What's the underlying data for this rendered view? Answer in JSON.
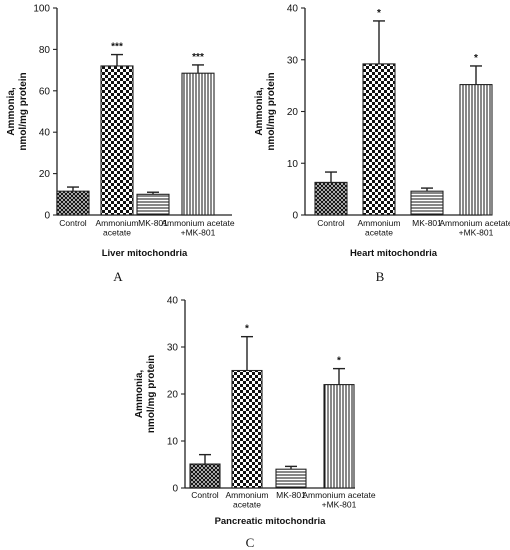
{
  "chart_data": [
    {
      "type": "bar",
      "panel": "A",
      "title": "Liver mitochondria",
      "ylabel": [
        "Ammonia,",
        "nmol/mg protein"
      ],
      "ylim": [
        0,
        100
      ],
      "yticks": [
        0,
        20,
        40,
        60,
        80,
        100
      ],
      "categories": [
        [
          "Control"
        ],
        [
          "Ammonium",
          "acetate"
        ],
        [
          "MK-801"
        ],
        [
          "Ammonium acetate",
          "+MK-801"
        ]
      ],
      "values": [
        11.5,
        72,
        10,
        68.5
      ],
      "errors": [
        2,
        5.5,
        1,
        4
      ],
      "significance": [
        "",
        "***",
        "",
        "***"
      ],
      "patterns": [
        "crosshatch",
        "checker",
        "horizontal",
        "vertical"
      ]
    },
    {
      "type": "bar",
      "panel": "B",
      "title": "Heart mitochondria",
      "ylabel": [
        "Ammonia,",
        "nmol/mg protein"
      ],
      "ylim": [
        0,
        40
      ],
      "yticks": [
        0,
        10,
        20,
        30,
        40
      ],
      "categories": [
        [
          "Control"
        ],
        [
          "Ammonium",
          "acetate"
        ],
        [
          "MK-801"
        ],
        [
          "Ammonium acetate",
          "+MK-801"
        ]
      ],
      "values": [
        6.3,
        29.2,
        4.6,
        25.2
      ],
      "errors": [
        2,
        8.3,
        0.6,
        3.6
      ],
      "significance": [
        "",
        "*",
        "",
        "*"
      ],
      "patterns": [
        "crosshatch",
        "checker",
        "horizontal",
        "vertical"
      ]
    },
    {
      "type": "bar",
      "panel": "C",
      "title": "Pancreatic mitochondria",
      "ylabel": [
        "Ammonia,",
        "nmol/mg protein"
      ],
      "ylim": [
        0,
        40
      ],
      "yticks": [
        0,
        10,
        20,
        30,
        40
      ],
      "categories": [
        [
          "Control"
        ],
        [
          "Ammonium",
          "acetate"
        ],
        [
          "MK-801"
        ],
        [
          "Ammonium acetate",
          "+MK-801"
        ]
      ],
      "values": [
        5.1,
        25,
        4,
        22
      ],
      "errors": [
        2,
        7.2,
        0.6,
        3.4
      ],
      "significance": [
        "",
        "*",
        "",
        "*"
      ],
      "patterns": [
        "crosshatch",
        "checker",
        "horizontal",
        "vertical"
      ]
    }
  ]
}
